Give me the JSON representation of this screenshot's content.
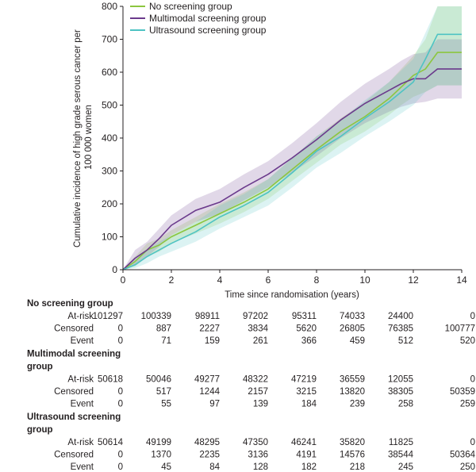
{
  "chart_data": {
    "type": "line",
    "xlabel": "Time since randomisation (years)",
    "ylabel": "Cumulative incidence of high grade serous cancer per 100 000 women",
    "xlim": [
      0,
      14
    ],
    "ylim": [
      0,
      800
    ],
    "x_ticks": [
      0,
      2,
      4,
      6,
      8,
      10,
      12,
      14
    ],
    "y_ticks": [
      0,
      100,
      200,
      300,
      400,
      500,
      600,
      700,
      800
    ],
    "x_tick_labels": [
      "0",
      "2",
      "4",
      "6",
      "8",
      "10",
      "12",
      "14"
    ],
    "y_tick_labels": [
      "0",
      "100",
      "200",
      "300",
      "400",
      "500",
      "600",
      "700",
      "800"
    ],
    "grid": false,
    "legend_position": "top-left",
    "series": [
      {
        "name": "No screening group",
        "color": "#8cc63f",
        "x": [
          0,
          0.5,
          1,
          1.5,
          2,
          3,
          4,
          5,
          6,
          7,
          8,
          9,
          10,
          11,
          11.5,
          12,
          12.5,
          13,
          14
        ],
        "y": [
          0,
          25,
          60,
          75,
          100,
          135,
          170,
          205,
          245,
          305,
          365,
          420,
          465,
          520,
          555,
          590,
          610,
          660,
          660
        ],
        "ci_lower": [
          0,
          10,
          40,
          55,
          80,
          110,
          140,
          175,
          215,
          270,
          325,
          380,
          420,
          470,
          500,
          525,
          540,
          560,
          560
        ],
        "ci_upper": [
          0,
          40,
          80,
          95,
          120,
          160,
          200,
          235,
          275,
          340,
          405,
          460,
          510,
          570,
          610,
          650,
          700,
          800,
          800
        ]
      },
      {
        "name": "Multimodal screening group",
        "color": "#6b3a8c",
        "x": [
          0,
          0.5,
          1,
          1.5,
          2,
          3,
          4,
          5,
          6,
          7,
          8,
          9,
          10,
          11,
          11.5,
          12,
          12.5,
          13,
          14
        ],
        "y": [
          0,
          35,
          60,
          95,
          135,
          180,
          205,
          250,
          290,
          340,
          395,
          455,
          505,
          545,
          565,
          580,
          580,
          610,
          610
        ],
        "ci_lower": [
          0,
          15,
          40,
          70,
          105,
          145,
          170,
          210,
          250,
          295,
          345,
          400,
          445,
          480,
          495,
          505,
          510,
          520,
          520
        ],
        "ci_upper": [
          0,
          60,
          85,
          125,
          165,
          215,
          245,
          290,
          330,
          385,
          445,
          510,
          565,
          610,
          635,
          655,
          660,
          700,
          700
        ]
      },
      {
        "name": "Ultrasound screening group",
        "color": "#4ec3c3",
        "x": [
          0,
          0.5,
          1,
          1.5,
          2,
          3,
          4,
          5,
          6,
          7,
          8,
          9,
          10,
          11,
          11.5,
          12,
          12.5,
          13,
          14
        ],
        "y": [
          0,
          15,
          40,
          60,
          80,
          115,
          160,
          195,
          235,
          295,
          360,
          405,
          460,
          510,
          540,
          570,
          640,
          715,
          715
        ],
        "ci_lower": [
          0,
          5,
          20,
          40,
          55,
          85,
          125,
          160,
          195,
          250,
          310,
          355,
          405,
          450,
          475,
          500,
          540,
          560,
          560
        ],
        "ci_upper": [
          0,
          30,
          60,
          85,
          105,
          145,
          195,
          230,
          275,
          340,
          405,
          455,
          515,
          570,
          605,
          640,
          720,
          800,
          800
        ]
      }
    ]
  },
  "risk_table": {
    "columns_x": [
      0,
      2,
      4,
      6,
      8,
      10,
      12,
      14
    ],
    "groups": [
      {
        "title_lines": [
          "No screening group"
        ],
        "rows": [
          {
            "label": "At-risk",
            "values": [
              "101297",
              "100339",
              "98911",
              "97202",
              "95311",
              "74033",
              "24400",
              "0"
            ]
          },
          {
            "label": "Censored",
            "values": [
              "0",
              "887",
              "2227",
              "3834",
              "5620",
              "26805",
              "76385",
              "100777"
            ]
          },
          {
            "label": "Event",
            "values": [
              "0",
              "71",
              "159",
              "261",
              "366",
              "459",
              "512",
              "520"
            ]
          }
        ]
      },
      {
        "title_lines": [
          "Multimodal screening",
          "group"
        ],
        "rows": [
          {
            "label": "At-risk",
            "values": [
              "50618",
              "50046",
              "49277",
              "48322",
              "47219",
              "36559",
              "12055",
              "0"
            ]
          },
          {
            "label": "Censored",
            "values": [
              "0",
              "517",
              "1244",
              "2157",
              "3215",
              "13820",
              "38305",
              "50359"
            ]
          },
          {
            "label": "Event",
            "values": [
              "0",
              "55",
              "97",
              "139",
              "184",
              "239",
              "258",
              "259"
            ]
          }
        ]
      },
      {
        "title_lines": [
          "Ultrasound screening",
          "group"
        ],
        "rows": [
          {
            "label": "At-risk",
            "values": [
              "50614",
              "49199",
              "48295",
              "47350",
              "46241",
              "35820",
              "11825",
              "0"
            ]
          },
          {
            "label": "Censored",
            "values": [
              "0",
              "1370",
              "2235",
              "3136",
              "4191",
              "14576",
              "38544",
              "50364"
            ]
          },
          {
            "label": "Event",
            "values": [
              "0",
              "45",
              "84",
              "128",
              "182",
              "218",
              "245",
              "250"
            ]
          }
        ]
      }
    ]
  }
}
